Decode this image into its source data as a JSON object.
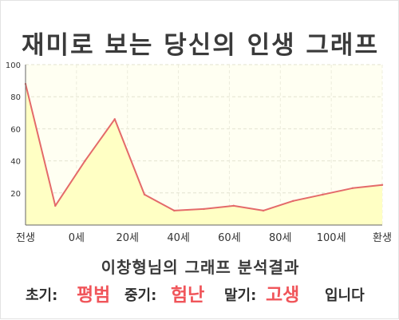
{
  "title": "재미로 보는 당신의 인생 그래프",
  "caption": "이창형님의 그래프 분석결과",
  "verdict": {
    "early_label": "초기:",
    "early_value": "평범",
    "mid_label": "중기:",
    "mid_value": "험난",
    "late_label": "말기:",
    "late_value": "고생",
    "suffix": "입니다"
  },
  "colors": {
    "line": "#e46a6a",
    "fill": "#ffffc4",
    "plot_background": "#fffff2",
    "highlight": "#f0555a"
  },
  "chart_data": {
    "type": "area",
    "title": "",
    "xlabel": "",
    "ylabel": "",
    "ylim": [
      0,
      100
    ],
    "yticks": [
      20,
      40,
      60,
      80,
      100
    ],
    "grid": true,
    "x_ticks": [
      "전생",
      "0세",
      "20세",
      "40세",
      "60세",
      "80세",
      "100세",
      "환생"
    ],
    "x": [
      -10,
      0,
      10,
      20,
      30,
      40,
      50,
      60,
      70,
      80,
      90,
      100,
      110
    ],
    "values": [
      88,
      12,
      40,
      66,
      19,
      9,
      10,
      12,
      9,
      15,
      19,
      23,
      25
    ]
  }
}
